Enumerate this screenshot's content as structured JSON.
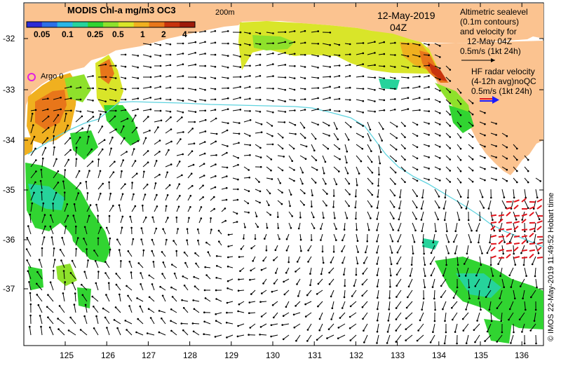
{
  "colorbar": {
    "title": "MODIS Chl-a mg/m3 OC3",
    "ticks": [
      "0.05",
      "0.1",
      "0.25",
      "0.5",
      "1",
      "2",
      "4"
    ],
    "colors": [
      "#2b2bd6",
      "#2b6fe8",
      "#29b6e8",
      "#26d39b",
      "#31d431",
      "#8ee12b",
      "#d9e529",
      "#f0b01f",
      "#e8761a",
      "#c8330e",
      "#9e1a0a"
    ]
  },
  "isobath_label": "200m",
  "date": {
    "line1": "12-May-2019",
    "line2": "04Z"
  },
  "altimetry_legend": [
    "Altimetric sealevel",
    "(0.1m contours)",
    "and velocity for",
    "12-May 04Z",
    "0.5m/s (1kt 24h)"
  ],
  "hf_legend": [
    "HF radar velocity",
    "(4-12h avg)noQC",
    "0.5m/s (1kt 24h)"
  ],
  "argo_label": "Argo 0",
  "lat_labels": [
    "-32",
    "-33",
    "-34",
    "-35",
    "-36",
    "-37"
  ],
  "lon_labels": [
    "125",
    "126",
    "127",
    "128",
    "129",
    "130",
    "131",
    "132",
    "133",
    "134",
    "135",
    "136"
  ],
  "credit": "© IMOS 22-May-2019 11:49:52 Hobart time",
  "colors": {
    "land": "#fbc390",
    "isobath": "#5fd3df",
    "vector": "#000000",
    "hf_vector": "#e0141c",
    "argo": "#e020e0"
  }
}
